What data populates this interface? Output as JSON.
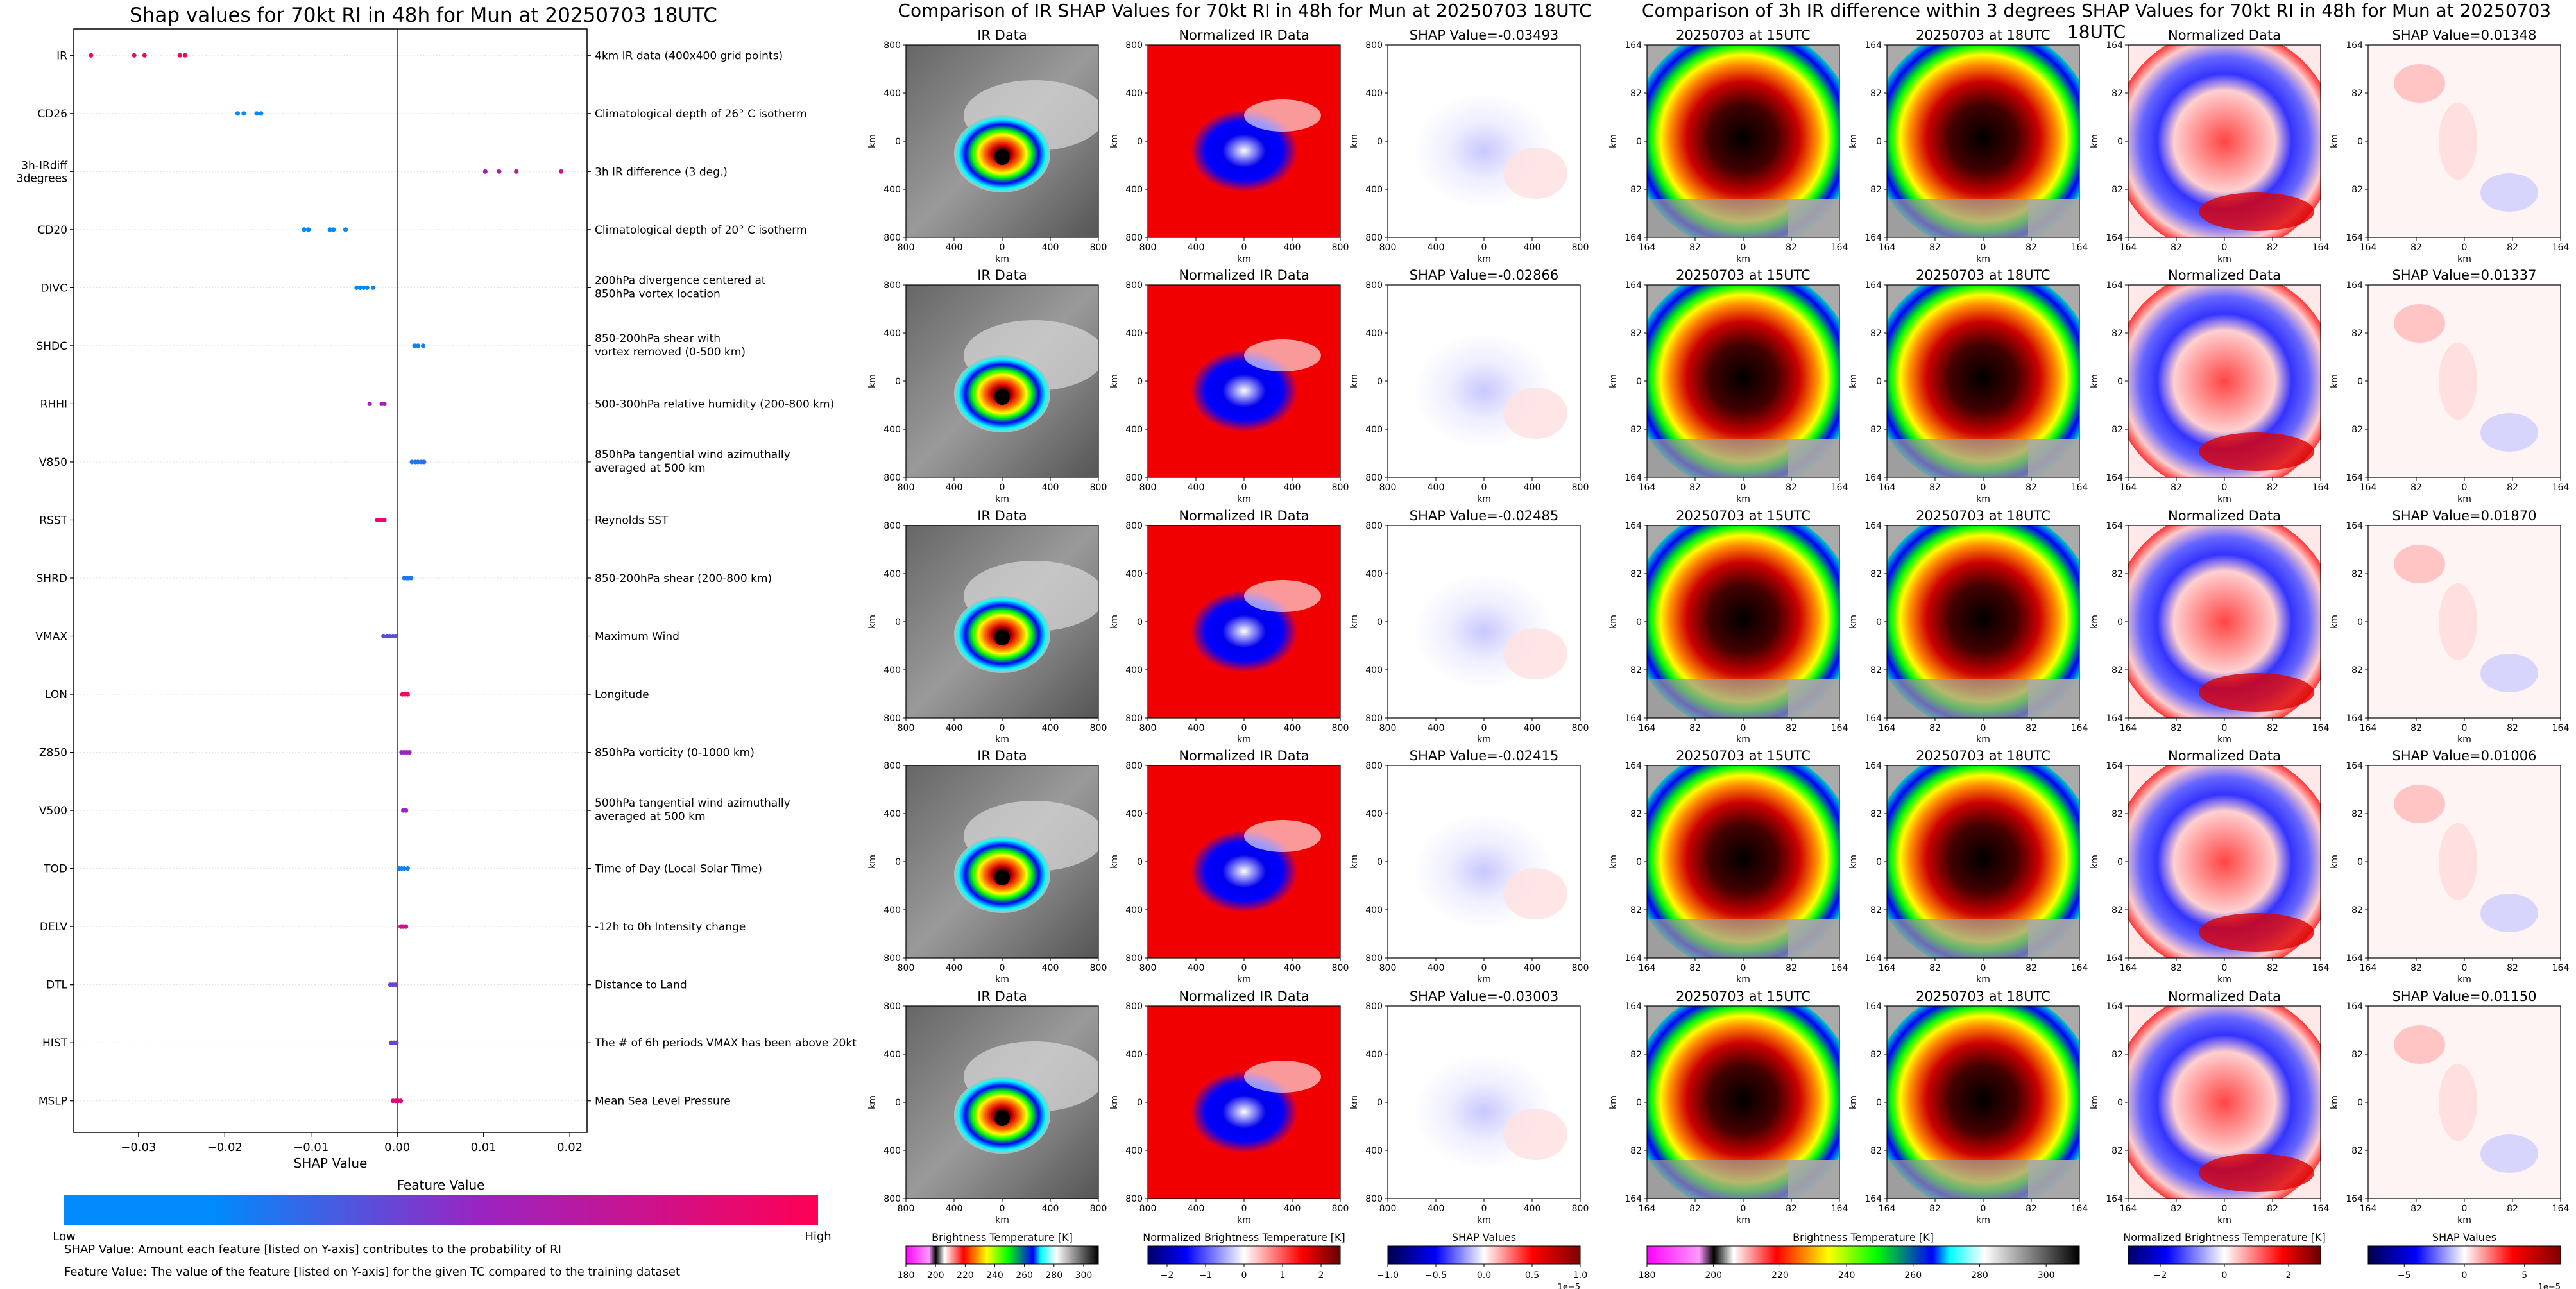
{
  "page": {
    "super_title_ir": "Comparison of IR SHAP Values for 70kt RI in 48h for Mun at 20250703 18UTC",
    "super_title_diff": "Comparison of 3h IR difference within 3 degrees SHAP Values for 70kt RI in 48h for Mun at 20250703 18UTC"
  },
  "colors": {
    "low": "#008afb",
    "mid": "#9a24c2",
    "high": "#ff0055",
    "zero_line": "#555555"
  },
  "chart_data": [
    {
      "type": "scatter",
      "name": "beeswarm",
      "title": "Shap values for 70kt RI in 48h for Mun at 20250703 18UTC",
      "xlabel": "SHAP Value",
      "xlim": [
        -0.0375,
        0.022
      ],
      "xticks": [
        -0.03,
        -0.02,
        -0.01,
        0.0,
        0.01,
        0.02
      ],
      "xtick_labels": [
        "−0.03",
        "−0.02",
        "−0.01",
        "0.00",
        "0.01",
        "0.02"
      ],
      "colorbar": {
        "label": "Feature Value",
        "low_label": "Low",
        "high_label": "High"
      },
      "features": [
        {
          "name": "IR",
          "desc": [
            "4km IR data (400x400 grid points)"
          ],
          "points": [
            [
              -0.0355,
              1.0
            ],
            [
              -0.0305,
              0.9
            ],
            [
              -0.0293,
              0.95
            ],
            [
              -0.0252,
              0.98
            ],
            [
              -0.0246,
              0.97
            ]
          ]
        },
        {
          "name": "CD26",
          "desc": [
            "Climatological depth of 26° C isotherm"
          ],
          "points": [
            [
              -0.0185,
              0.0
            ],
            [
              -0.0178,
              0.0
            ],
            [
              -0.0163,
              0.0
            ],
            [
              -0.0158,
              0.0
            ]
          ]
        },
        {
          "name": "3h-IRdiff 3degrees",
          "desc": [
            "3h IR difference (3 deg.)"
          ],
          "points": [
            [
              0.0102,
              0.55
            ],
            [
              0.0118,
              0.6
            ],
            [
              0.0138,
              0.7
            ],
            [
              0.019,
              0.75
            ]
          ]
        },
        {
          "name": "CD20",
          "desc": [
            "Climatological depth of 20° C isotherm"
          ],
          "points": [
            [
              -0.0108,
              0.0
            ],
            [
              -0.0103,
              0.0
            ],
            [
              -0.0078,
              0.0
            ],
            [
              -0.0074,
              0.0
            ],
            [
              -0.006,
              0.0
            ]
          ]
        },
        {
          "name": "DIVC",
          "desc": [
            "200hPa divergence centered at",
            "850hPa vortex location"
          ],
          "points": [
            [
              -0.0047,
              0.0
            ],
            [
              -0.0043,
              0.0
            ],
            [
              -0.0039,
              0.0
            ],
            [
              -0.0035,
              0.0
            ],
            [
              -0.0028,
              0.05
            ]
          ]
        },
        {
          "name": "SHDC",
          "desc": [
            "850-200hPa shear with",
            "vortex removed (0-500 km)"
          ],
          "points": [
            [
              0.002,
              0.05
            ],
            [
              0.0024,
              0.05
            ],
            [
              0.003,
              0.05
            ]
          ]
        },
        {
          "name": "RHHI",
          "desc": [
            "500-300hPa relative humidity (200-800 km)"
          ],
          "points": [
            [
              -0.0032,
              0.6
            ],
            [
              -0.0018,
              0.55
            ],
            [
              -0.0015,
              0.55
            ]
          ]
        },
        {
          "name": "V850",
          "desc": [
            "850hPa tangential wind azimuthally",
            "averaged at 500 km"
          ],
          "points": [
            [
              0.0017,
              0.1
            ],
            [
              0.0021,
              0.1
            ],
            [
              0.0024,
              0.1
            ],
            [
              0.0028,
              0.1
            ],
            [
              0.0031,
              0.15
            ]
          ]
        },
        {
          "name": "RSST",
          "desc": [
            "Reynolds SST"
          ],
          "points": [
            [
              -0.0023,
              0.9
            ],
            [
              -0.0019,
              0.9
            ],
            [
              -0.0017,
              0.9
            ],
            [
              -0.0015,
              0.9
            ]
          ]
        },
        {
          "name": "SHRD",
          "desc": [
            "850-200hPa shear (200-800 km)"
          ],
          "points": [
            [
              0.0008,
              0.1
            ],
            [
              0.0011,
              0.1
            ],
            [
              0.0013,
              0.1
            ],
            [
              0.0016,
              0.1
            ]
          ]
        },
        {
          "name": "VMAX",
          "desc": [
            "Maximum Wind"
          ],
          "points": [
            [
              -0.0016,
              0.3
            ],
            [
              -0.0012,
              0.3
            ],
            [
              -0.0009,
              0.3
            ],
            [
              -0.0005,
              0.3
            ],
            [
              -0.0002,
              0.3
            ]
          ]
        },
        {
          "name": "LON",
          "desc": [
            "Longitude"
          ],
          "points": [
            [
              0.0006,
              0.95
            ],
            [
              0.0009,
              0.95
            ],
            [
              0.0012,
              0.95
            ]
          ]
        },
        {
          "name": "Z850",
          "desc": [
            "850hPa vorticity (0-1000 km)"
          ],
          "points": [
            [
              0.0005,
              0.5
            ],
            [
              0.0008,
              0.5
            ],
            [
              0.0011,
              0.5
            ],
            [
              0.0014,
              0.5
            ]
          ]
        },
        {
          "name": "V500",
          "desc": [
            "500hPa tangential wind azimuthally",
            "averaged at 500 km"
          ],
          "points": [
            [
              0.0007,
              0.5
            ],
            [
              0.001,
              0.5
            ]
          ]
        },
        {
          "name": "TOD",
          "desc": [
            "Time of Day (Local Solar Time)"
          ],
          "points": [
            [
              0.0002,
              0.05
            ],
            [
              0.0005,
              0.05
            ],
            [
              0.0008,
              0.05
            ],
            [
              0.0012,
              0.05
            ]
          ]
        },
        {
          "name": "DELV",
          "desc": [
            "-12h to 0h Intensity change"
          ],
          "points": [
            [
              0.0004,
              0.75
            ],
            [
              0.0007,
              0.75
            ],
            [
              0.001,
              0.75
            ]
          ]
        },
        {
          "name": "DTL",
          "desc": [
            "Distance to Land"
          ],
          "points": [
            [
              -0.0008,
              0.35
            ],
            [
              -0.0005,
              0.35
            ],
            [
              -0.0002,
              0.35
            ]
          ]
        },
        {
          "name": "HIST",
          "desc": [
            "The # of 6h periods VMAX has been above 20kt"
          ],
          "points": [
            [
              -0.0007,
              0.35
            ],
            [
              -0.0004,
              0.35
            ],
            [
              -0.0001,
              0.35
            ]
          ]
        },
        {
          "name": "MSLP",
          "desc": [
            "Mean Sea Level Pressure"
          ],
          "points": [
            [
              -0.0005,
              0.85
            ],
            [
              -0.0002,
              0.85
            ],
            [
              0.0001,
              0.85
            ],
            [
              0.0004,
              0.85
            ]
          ]
        }
      ]
    },
    {
      "type": "heatmap",
      "name": "IR Data",
      "ylabel": "km",
      "xlabel": "km",
      "xtick_labels": [
        "800",
        "400",
        "0",
        "400",
        "800"
      ],
      "ytick_labels": [
        "800",
        "400",
        "0",
        "400",
        "800"
      ],
      "colorbar": {
        "label": "Brightness Temperature [K]",
        "ticks": [
          "180",
          "200",
          "220",
          "240",
          "260",
          "280",
          "300"
        ],
        "range": [
          180,
          310
        ]
      }
    },
    {
      "type": "heatmap",
      "name": "Normalized IR Data",
      "ylabel": "km",
      "xlabel": "km",
      "xtick_labels": [
        "800",
        "400",
        "0",
        "400",
        "800"
      ],
      "ytick_labels": [
        "800",
        "400",
        "0",
        "400",
        "800"
      ],
      "colorbar": {
        "label": "Normalized Brightness Temperature [K]",
        "ticks": [
          "−2",
          "−1",
          "0",
          "1",
          "2"
        ],
        "range": [
          -2.5,
          2.5
        ]
      }
    },
    {
      "type": "heatmap",
      "name": "SHAP Values (IR)",
      "ylabel": "km",
      "xlabel": "km",
      "xtick_labels": [
        "800",
        "400",
        "0",
        "400",
        "800"
      ],
      "ytick_labels": [
        "800",
        "400",
        "0",
        "400",
        "800"
      ],
      "panel_titles": [
        "SHAP Value=-0.03493",
        "SHAP Value=-0.02866",
        "SHAP Value=-0.02485",
        "SHAP Value=-0.02415",
        "SHAP Value=-0.03003"
      ],
      "colorbar": {
        "label": "SHAP Values",
        "ticks": [
          "−1.0",
          "−0.5",
          "0.0",
          "0.5",
          "1.0"
        ],
        "range": [
          -1,
          1
        ],
        "exponent": "1e−5"
      }
    },
    {
      "type": "heatmap",
      "name": "3h IR at 15UTC",
      "title": "20250703 at 15UTC",
      "ylabel": "km",
      "xlabel": "km",
      "xtick_labels": [
        "164",
        "82",
        "0",
        "82",
        "164"
      ],
      "ytick_labels": [
        "164",
        "82",
        "0",
        "82",
        "164"
      ],
      "colorbar": {
        "label": "Brightness Temperature [K]",
        "ticks": [
          "180",
          "200",
          "220",
          "240",
          "260",
          "280",
          "300"
        ],
        "range": [
          180,
          310
        ]
      }
    },
    {
      "type": "heatmap",
      "name": "3h IR at 18UTC",
      "title": "20250703 at 18UTC",
      "ylabel": "km",
      "xlabel": "km",
      "xtick_labels": [
        "164",
        "82",
        "0",
        "82",
        "164"
      ],
      "ytick_labels": [
        "164",
        "82",
        "0",
        "82",
        "164"
      ]
    },
    {
      "type": "heatmap",
      "name": "Normalized Data",
      "ylabel": "km",
      "xlabel": "km",
      "xtick_labels": [
        "164",
        "82",
        "0",
        "82",
        "164"
      ],
      "ytick_labels": [
        "164",
        "82",
        "0",
        "82",
        "164"
      ],
      "colorbar": {
        "label": "Normalized Brightness Temperature [K]",
        "ticks": [
          "−2",
          "0",
          "2"
        ],
        "range": [
          -3,
          3
        ]
      }
    },
    {
      "type": "heatmap",
      "name": "SHAP Values (3h diff)",
      "ylabel": "km",
      "xlabel": "km",
      "xtick_labels": [
        "164",
        "82",
        "0",
        "82",
        "164"
      ],
      "ytick_labels": [
        "164",
        "82",
        "0",
        "82",
        "164"
      ],
      "panel_titles": [
        "SHAP Value=0.01348",
        "SHAP Value=0.01337",
        "SHAP Value=0.01870",
        "SHAP Value=0.01006",
        "SHAP Value=0.01150"
      ],
      "colorbar": {
        "label": "SHAP Values",
        "ticks": [
          "−5",
          "0",
          "5"
        ],
        "range": [
          -8,
          8
        ],
        "exponent": "1e−5"
      }
    }
  ],
  "footnotes": {
    "line1": "SHAP Value: Amount each feature [listed on Y-axis] contributes to the probability of RI",
    "line2": "Feature Value: The value of the feature [listed on Y-axis] for the given TC compared to the training dataset"
  }
}
